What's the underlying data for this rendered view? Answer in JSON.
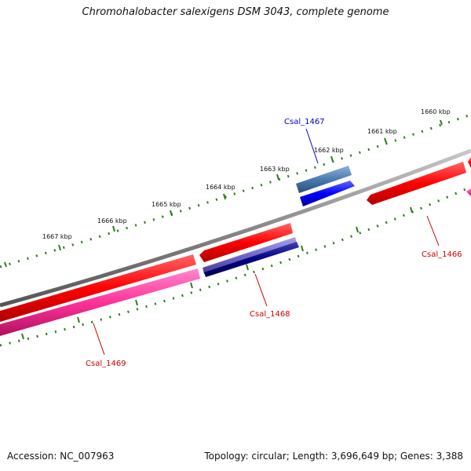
{
  "title": "Chromohalobacter salexigens DSM 3043, complete genome",
  "footer": {
    "accession": "Accession: NC_007963",
    "summary": "Topology: circular; Length: 3,696,649 bp; Genes: 3,388"
  },
  "ruler": {
    "labels": [
      "1660 kbp",
      "1661 kbp",
      "1662 kbp",
      "1663 kbp",
      "1664 kbp",
      "1665 kbp",
      "1666 kbp",
      "1667 kbp"
    ]
  },
  "genes": [
    {
      "name": "Csal_1466",
      "color": "#cc0000"
    },
    {
      "name": "Csal_1467",
      "color": "#0000cc"
    },
    {
      "name": "Csal_1468",
      "color": "#cc0000"
    },
    {
      "name": "Csal_1469",
      "color": "#cc0000"
    }
  ],
  "colors": {
    "backbone": "#888888",
    "ruler": "#2e7d1e",
    "gene_red": "#ff0000",
    "gene_pink": "#ff3399",
    "gene_steel": "#4a7bb0",
    "gene_blue": "#0000ff",
    "gene_slate": "#7066cc",
    "gene_navy": "#000080"
  }
}
